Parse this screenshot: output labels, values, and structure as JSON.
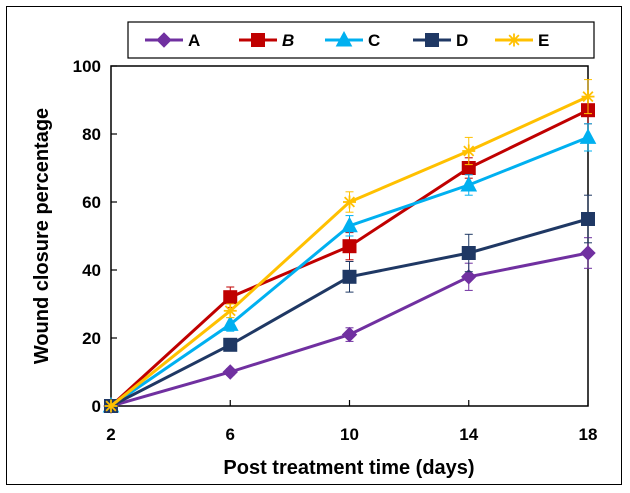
{
  "chart_data": {
    "type": "line",
    "title": "",
    "xlabel": "Post treatment time (days)",
    "ylabel": "Wound closure percentage",
    "x": [
      2,
      6,
      10,
      14,
      18
    ],
    "xticks": [
      "2",
      "6",
      "10",
      "14",
      "18"
    ],
    "yticks": [
      "0",
      "20",
      "40",
      "60",
      "80",
      "100"
    ],
    "ylim": [
      0,
      100
    ],
    "grid": false,
    "legend_position": "top",
    "series": [
      {
        "name": "A",
        "color": "#7030A0",
        "marker": "diamond",
        "values": [
          0,
          10,
          21,
          38,
          45
        ],
        "errors": [
          0,
          1,
          2,
          4,
          4.5
        ]
      },
      {
        "name": "B",
        "color": "#C00000",
        "marker": "square",
        "italic": true,
        "values": [
          0,
          32,
          47,
          70,
          87
        ],
        "errors": [
          0,
          3,
          4,
          3,
          4
        ]
      },
      {
        "name": "C",
        "color": "#00B0F0",
        "marker": "triangle",
        "values": [
          0,
          24,
          53,
          65,
          79
        ],
        "errors": [
          0,
          2,
          3,
          3,
          4
        ]
      },
      {
        "name": "D",
        "color": "#1F3864",
        "marker": "square",
        "values": [
          0,
          18,
          38,
          45,
          55
        ],
        "errors": [
          0,
          1.5,
          4.5,
          5.5,
          7
        ]
      },
      {
        "name": "E",
        "color": "#FFC000",
        "marker": "star",
        "values": [
          0,
          28,
          60,
          75,
          91
        ],
        "errors": [
          0,
          2,
          3,
          4,
          5
        ]
      }
    ]
  }
}
